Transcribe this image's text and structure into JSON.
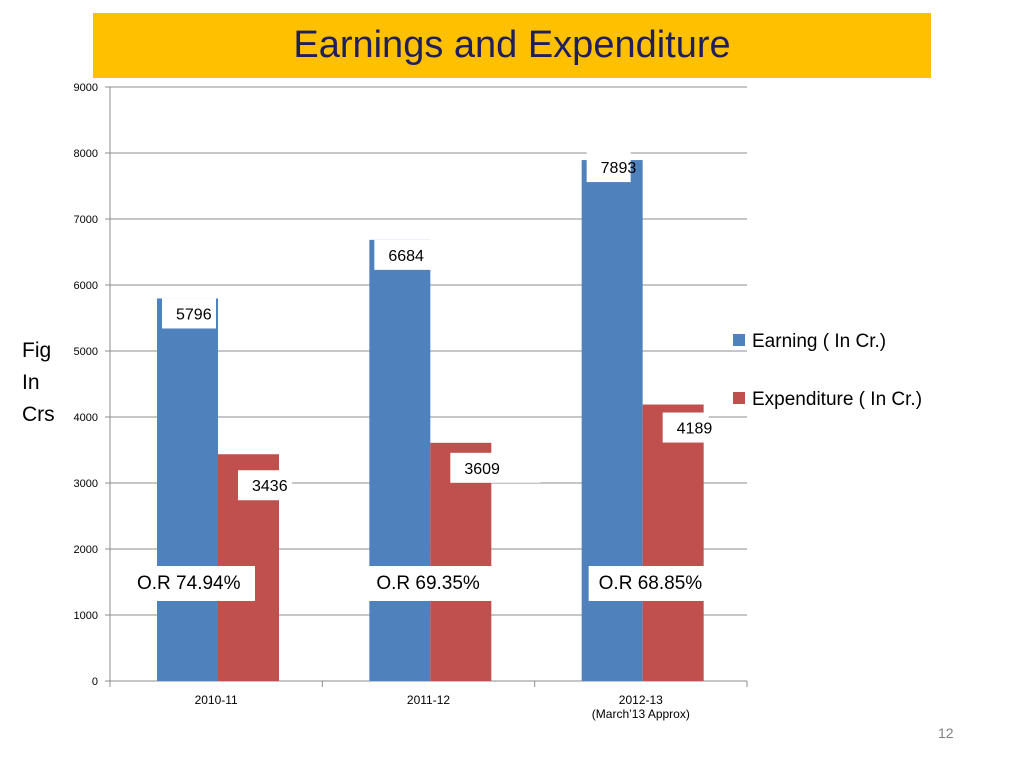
{
  "slide": {
    "page_number": "12"
  },
  "chart_data": {
    "type": "bar",
    "title": "Earnings and Expenditure",
    "ylabel": [
      "Fig",
      "In",
      "Crs"
    ],
    "xlabel": "",
    "ylim": [
      0,
      9000
    ],
    "yticks": [
      0,
      1000,
      2000,
      3000,
      4000,
      5000,
      6000,
      7000,
      8000,
      9000
    ],
    "grid": true,
    "legend_position": "right",
    "categories": [
      "2010-11",
      "2011-12",
      "2012-13"
    ],
    "category_sublabels": [
      "",
      "",
      "(March’13 Approx)"
    ],
    "series": [
      {
        "name": "Earning    ( In Cr.)",
        "color": "#4F81BD",
        "values": [
          5796,
          6684,
          7893
        ],
        "labels": [
          "5796",
          "6684",
          "7893"
        ]
      },
      {
        "name": "Expenditure   ( In Cr.)",
        "color": "#C0504D",
        "values": [
          3436,
          3609,
          4189
        ],
        "labels": [
          "3436",
          "3609",
          "4189"
        ]
      }
    ],
    "annotations": [
      "O.R  74.94%",
      "O.R   69.35%",
      "O.R  68.85%"
    ]
  }
}
